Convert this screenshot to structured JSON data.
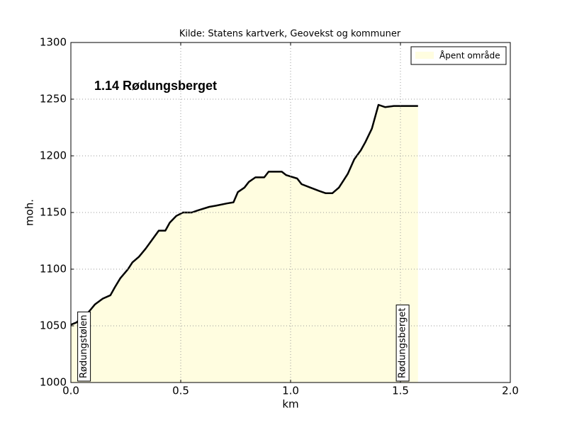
{
  "chart_data": {
    "type": "area",
    "title": "Kilde: Statens kartverk, Geovekst og kommuner",
    "annotation": "1.14 Rødungsberget",
    "x_label": "km",
    "y_label": "moh.",
    "x": [
      0,
      0.026,
      0.05,
      0.08,
      0.11,
      0.145,
      0.18,
      0.2,
      0.225,
      0.26,
      0.28,
      0.31,
      0.34,
      0.37,
      0.4,
      0.43,
      0.45,
      0.48,
      0.51,
      0.55,
      0.58,
      0.63,
      0.66,
      0.71,
      0.74,
      0.76,
      0.79,
      0.81,
      0.84,
      0.88,
      0.9,
      0.935,
      0.96,
      0.98,
      1.03,
      1.05,
      1.09,
      1.13,
      1.16,
      1.19,
      1.22,
      1.26,
      1.29,
      1.32,
      1.34,
      1.37,
      1.4,
      1.43,
      1.47,
      1.52,
      1.55,
      1.58
    ],
    "series": [
      {
        "name": "Åpent område",
        "color": "#fffde0",
        "line_color": "#000000",
        "values": [
          1051,
          1053,
          1058,
          1062,
          1069,
          1074,
          1077,
          1084,
          1092,
          1100,
          1106,
          1111,
          1118,
          1126,
          1134,
          1134,
          1141,
          1147,
          1150,
          1150,
          1152,
          1155,
          1156,
          1158,
          1159,
          1168,
          1172,
          1177,
          1181,
          1181,
          1186,
          1186,
          1186,
          1183,
          1180,
          1175,
          1172,
          1169,
          1167,
          1167,
          1172,
          1184,
          1197,
          1205,
          1212,
          1224,
          1245,
          1243,
          1244,
          1244,
          1244,
          1244
        ]
      }
    ],
    "places": [
      {
        "label": "Rødungstølen",
        "x": 0.06
      },
      {
        "label": "Rødungsberget",
        "x": 1.51
      }
    ],
    "xlim": [
      0,
      2
    ],
    "ylim": [
      1000,
      1300
    ],
    "xticks": [
      {
        "value": 0,
        "label": "0.0"
      },
      0.5,
      {
        "value": 1,
        "label": "1.0"
      },
      1.5,
      {
        "value": 2,
        "label": "2.0"
      }
    ],
    "yticks": [
      1000,
      1050,
      1100,
      1150,
      1200,
      1250,
      1300
    ],
    "grid": true,
    "legend_position": "upper right"
  }
}
